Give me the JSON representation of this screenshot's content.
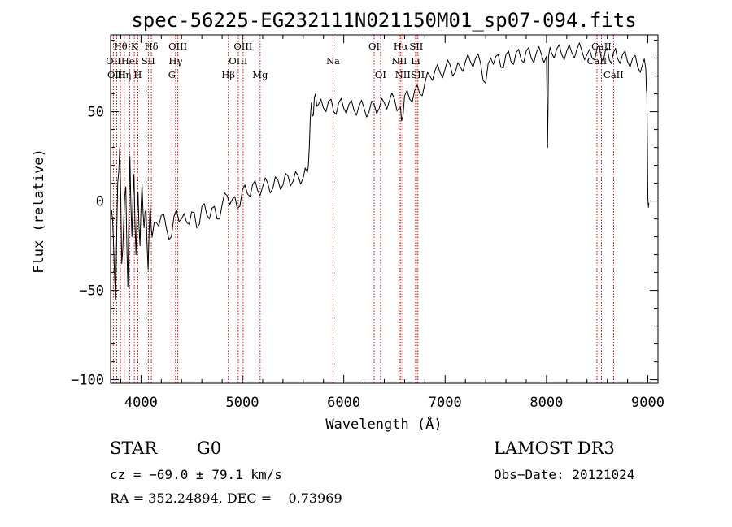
{
  "chart_data": {
    "type": "line",
    "title": "spec-56225-EG232111N021150M01_sp07-094.fits",
    "xlabel": "Wavelength (Å)",
    "ylabel": "Flux (relative)",
    "xlim": [
      3700,
      9100
    ],
    "ylim": [
      -102,
      93
    ],
    "x_ticks": [
      {
        "value": 4000,
        "label": "4000"
      },
      {
        "value": 5000,
        "label": "5000"
      },
      {
        "value": 6000,
        "label": "6000"
      },
      {
        "value": 7000,
        "label": "7000"
      },
      {
        "value": 8000,
        "label": "8000"
      },
      {
        "value": 9000,
        "label": "9000"
      }
    ],
    "y_ticks": [
      {
        "value": -100,
        "label": "−100"
      },
      {
        "value": -50,
        "label": "−50"
      },
      {
        "value": 0,
        "label": "0"
      },
      {
        "value": 50,
        "label": "50"
      }
    ],
    "series": [
      {
        "name": "spectrum",
        "color": "#000000",
        "x": [
          3710,
          3730,
          3750,
          3770,
          3790,
          3810,
          3830,
          3850,
          3870,
          3890,
          3910,
          3930,
          3950,
          3970,
          3990,
          4010,
          4030,
          4050,
          4070,
          4090,
          4110,
          4150,
          4200,
          4250,
          4300,
          4350,
          4400,
          4450,
          4500,
          4550,
          4600,
          4650,
          4700,
          4750,
          4800,
          4850,
          4900,
          4950,
          5000,
          5050,
          5100,
          5150,
          5200,
          5250,
          5300,
          5350,
          5400,
          5450,
          5500,
          5550,
          5600,
          5640,
          5660,
          5680,
          5700,
          5720,
          5750,
          5800,
          5850,
          5900,
          5950,
          6000,
          6050,
          6100,
          6150,
          6200,
          6250,
          6300,
          6350,
          6400,
          6450,
          6500,
          6550,
          6570,
          6600,
          6650,
          6700,
          6750,
          6800,
          6850,
          6900,
          6950,
          7000,
          7050,
          7100,
          7150,
          7200,
          7250,
          7300,
          7350,
          7400,
          7450,
          7500,
          7550,
          7600,
          7650,
          7700,
          7750,
          7800,
          7850,
          7900,
          7950,
          8000,
          8010,
          8020,
          8050,
          8100,
          8150,
          8200,
          8250,
          8300,
          8350,
          8400,
          8450,
          8500,
          8540,
          8580,
          8620,
          8660,
          8700,
          8750,
          8800,
          8850,
          8900,
          8950,
          8980,
          8990,
          9000,
          9010
        ],
        "y": [
          -5,
          -25,
          -55,
          10,
          30,
          -35,
          -10,
          8,
          -48,
          25,
          -20,
          15,
          -30,
          5,
          -25,
          10,
          -15,
          -5,
          -38,
          -2,
          -20,
          -12,
          -8,
          -15,
          -20,
          -5,
          -10,
          -12,
          -6,
          -15,
          -3,
          -8,
          -4,
          -10,
          -2,
          3,
          1,
          -4,
          6,
          4,
          9,
          6,
          8,
          10,
          7,
          12,
          9,
          14,
          11,
          14,
          13,
          16,
          30,
          55,
          48,
          60,
          54,
          52,
          56,
          50,
          55,
          52,
          54,
          51,
          53,
          52,
          50,
          54,
          52,
          55,
          56,
          57,
          52,
          45,
          59,
          57,
          62,
          60,
          66,
          70,
          73,
          72,
          74,
          76,
          72,
          75,
          78,
          78,
          80,
          77,
          66,
          80,
          81,
          75,
          82,
          78,
          83,
          79,
          84,
          80,
          83,
          82,
          81,
          30,
          81,
          83,
          85,
          82,
          84,
          83,
          85,
          84,
          82,
          80,
          86,
          80,
          84,
          79,
          83,
          80,
          82,
          78,
          80,
          75,
          77,
          74,
          60,
          2,
          -1
        ]
      }
    ],
    "emission_lines": [
      {
        "name": "Hθ",
        "wavelength": 3798,
        "row": 1
      },
      {
        "name": "OII",
        "wavelength": 3727,
        "row": 2
      },
      {
        "name": "OIII",
        "wavelength": 3760,
        "row": 3
      },
      {
        "name": "Hη",
        "wavelength": 3835,
        "row": 3
      },
      {
        "name": "HeI",
        "wavelength": 3889,
        "row": 2
      },
      {
        "name": "K",
        "wavelength": 3934,
        "row": 1
      },
      {
        "name": "H",
        "wavelength": 3968,
        "row": 3
      },
      {
        "name": "SII",
        "wavelength": 4072,
        "row": 2
      },
      {
        "name": "Hδ",
        "wavelength": 4102,
        "row": 1
      },
      {
        "name": "G",
        "wavelength": 4305,
        "row": 3
      },
      {
        "name": "Hγ",
        "wavelength": 4341,
        "row": 2
      },
      {
        "name": "OIII",
        "wavelength": 4363,
        "row": 1
      },
      {
        "name": "Hβ",
        "wavelength": 4861,
        "row": 3
      },
      {
        "name": "OIII",
        "wavelength": 4959,
        "row": 2
      },
      {
        "name": "OIII",
        "wavelength": 5007,
        "row": 1
      },
      {
        "name": "Mg",
        "wavelength": 5175,
        "row": 3
      },
      {
        "name": "Na",
        "wavelength": 5894,
        "row": 2
      },
      {
        "name": "OI",
        "wavelength": 6300,
        "row": 1
      },
      {
        "name": "OI",
        "wavelength": 6363,
        "row": 3
      },
      {
        "name": "NII",
        "wavelength": 6548,
        "row": 2
      },
      {
        "name": "Hα",
        "wavelength": 6563,
        "row": 1
      },
      {
        "name": "NII",
        "wavelength": 6583,
        "row": 3
      },
      {
        "name": "Li",
        "wavelength": 6708,
        "row": 2
      },
      {
        "name": "SII",
        "wavelength": 6716,
        "row": 1
      },
      {
        "name": "SII",
        "wavelength": 6731,
        "row": 3
      },
      {
        "name": "CaII",
        "wavelength": 8498,
        "row": 2
      },
      {
        "name": "CaII",
        "wavelength": 8542,
        "row": 1
      },
      {
        "name": "CaII",
        "wavelength": 8662,
        "row": 3
      }
    ],
    "line_marker_color": "#cc0000"
  },
  "info": {
    "object_class": "STAR",
    "subclass": "G0",
    "survey": "LAMOST DR3",
    "redshift_text": "cz = −69.0 ± 79.1 km/s",
    "obs_date_text": "Obs−Date: 20121024",
    "coords_text": "RA = 352.24894, DEC =    0.73969"
  }
}
